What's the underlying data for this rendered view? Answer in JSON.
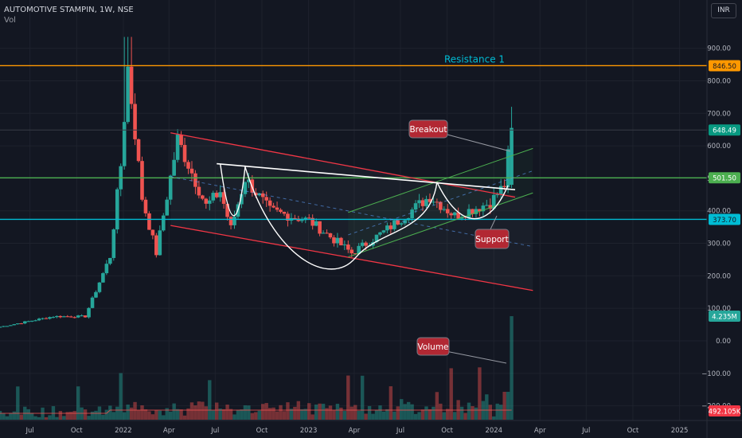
{
  "header": {
    "symbol": "AUTOMOTIVE STAMPIN, 1W, NSE",
    "volume_label": "Vol",
    "currency": "INR"
  },
  "colors": {
    "background": "#131722",
    "grid": "#1e222d",
    "up": "#26a69a",
    "down": "#ef5350",
    "resistance": "#ff9800",
    "mid_level": "#4caf50",
    "support_level": "#00bcd4",
    "channel": "#f23645",
    "rising_channel": "#4caf50",
    "pattern": "#ffffff",
    "callout_fill": "#b22833",
    "resistance_text": "#00bcd4"
  },
  "chart_data": {
    "type": "candlestick",
    "interval": "1W",
    "price_axis": {
      "ticks": [
        900,
        800,
        700,
        600,
        500,
        400,
        300,
        200,
        100,
        0,
        -100,
        -200
      ],
      "tick_labels": [
        "900.00",
        "800.00",
        "700.00",
        "600.00",
        "500.00",
        "400.00",
        "300.00",
        "200.00",
        "100.00",
        "0.00",
        "−100.00",
        "−200.00"
      ],
      "range": [
        -230,
        1000
      ],
      "grid": true
    },
    "time_axis": {
      "ticks": [
        "2021-07-01",
        "2021-10-01",
        "2022-01-01",
        "2022-04-01",
        "2022-07-01",
        "2022-10-01",
        "2023-01-01",
        "2023-04-01",
        "2023-07-01",
        "2023-10-01",
        "2024-01-01",
        "2024-04-01",
        "2024-07-01",
        "2024-10-01",
        "2025-01-01"
      ],
      "tick_labels": [
        "Jul",
        "Oct",
        "2022",
        "Apr",
        "Jul",
        "Oct",
        "2023",
        "Apr",
        "Jul",
        "Oct",
        "2024",
        "Apr",
        "Jul",
        "Oct",
        "2025"
      ],
      "range": [
        "2021-05-03",
        "2025-02-24"
      ]
    },
    "price_labels": [
      {
        "value": "846.50",
        "role": "resistance"
      },
      {
        "value": "648.49",
        "role": "last"
      },
      {
        "value": "501.50",
        "role": "mid_level"
      },
      {
        "value": "373.70",
        "role": "support_level"
      },
      {
        "value": "4.235M",
        "role": "volume"
      },
      {
        "value": "492.105K",
        "role": "volume_ma"
      }
    ],
    "horizontal_lines": [
      {
        "price": 846.5,
        "role": "resistance"
      },
      {
        "price": 648.49,
        "role": "last_price"
      },
      {
        "price": 501.5,
        "role": "mid_level"
      },
      {
        "price": 373.7,
        "role": "support_level"
      }
    ],
    "annotations": {
      "resistance_text": "Resistance 1",
      "breakout": "Breakout",
      "support": "Support",
      "volume": "Volume"
    },
    "key_points": [
      {
        "date": "2021-05-03",
        "close": 43
      },
      {
        "date": "2021-08-16",
        "close": 75
      },
      {
        "date": "2021-10-18",
        "close": 75
      },
      {
        "date": "2021-12-06",
        "close": 260
      },
      {
        "date": "2021-12-27",
        "close": 540
      },
      {
        "date": "2022-01-10",
        "close": 840
      },
      {
        "date": "2022-02-07",
        "close": 440
      },
      {
        "date": "2022-03-07",
        "close": 270
      },
      {
        "date": "2022-04-18",
        "close": 620
      },
      {
        "date": "2022-06-13",
        "close": 415
      },
      {
        "date": "2022-07-11",
        "close": 460
      },
      {
        "date": "2022-08-01",
        "close": 345
      },
      {
        "date": "2022-08-29",
        "close": 500
      },
      {
        "date": "2022-10-17",
        "close": 400
      },
      {
        "date": "2023-01-02",
        "close": 370
      },
      {
        "date": "2023-03-27",
        "close": 270
      },
      {
        "date": "2023-05-29",
        "close": 335
      },
      {
        "date": "2023-08-28",
        "close": 445
      },
      {
        "date": "2023-10-16",
        "close": 385
      },
      {
        "date": "2023-12-25",
        "close": 425
      },
      {
        "date": "2024-01-22",
        "close": 480
      },
      {
        "date": "2024-02-05",
        "close": 655
      }
    ]
  }
}
